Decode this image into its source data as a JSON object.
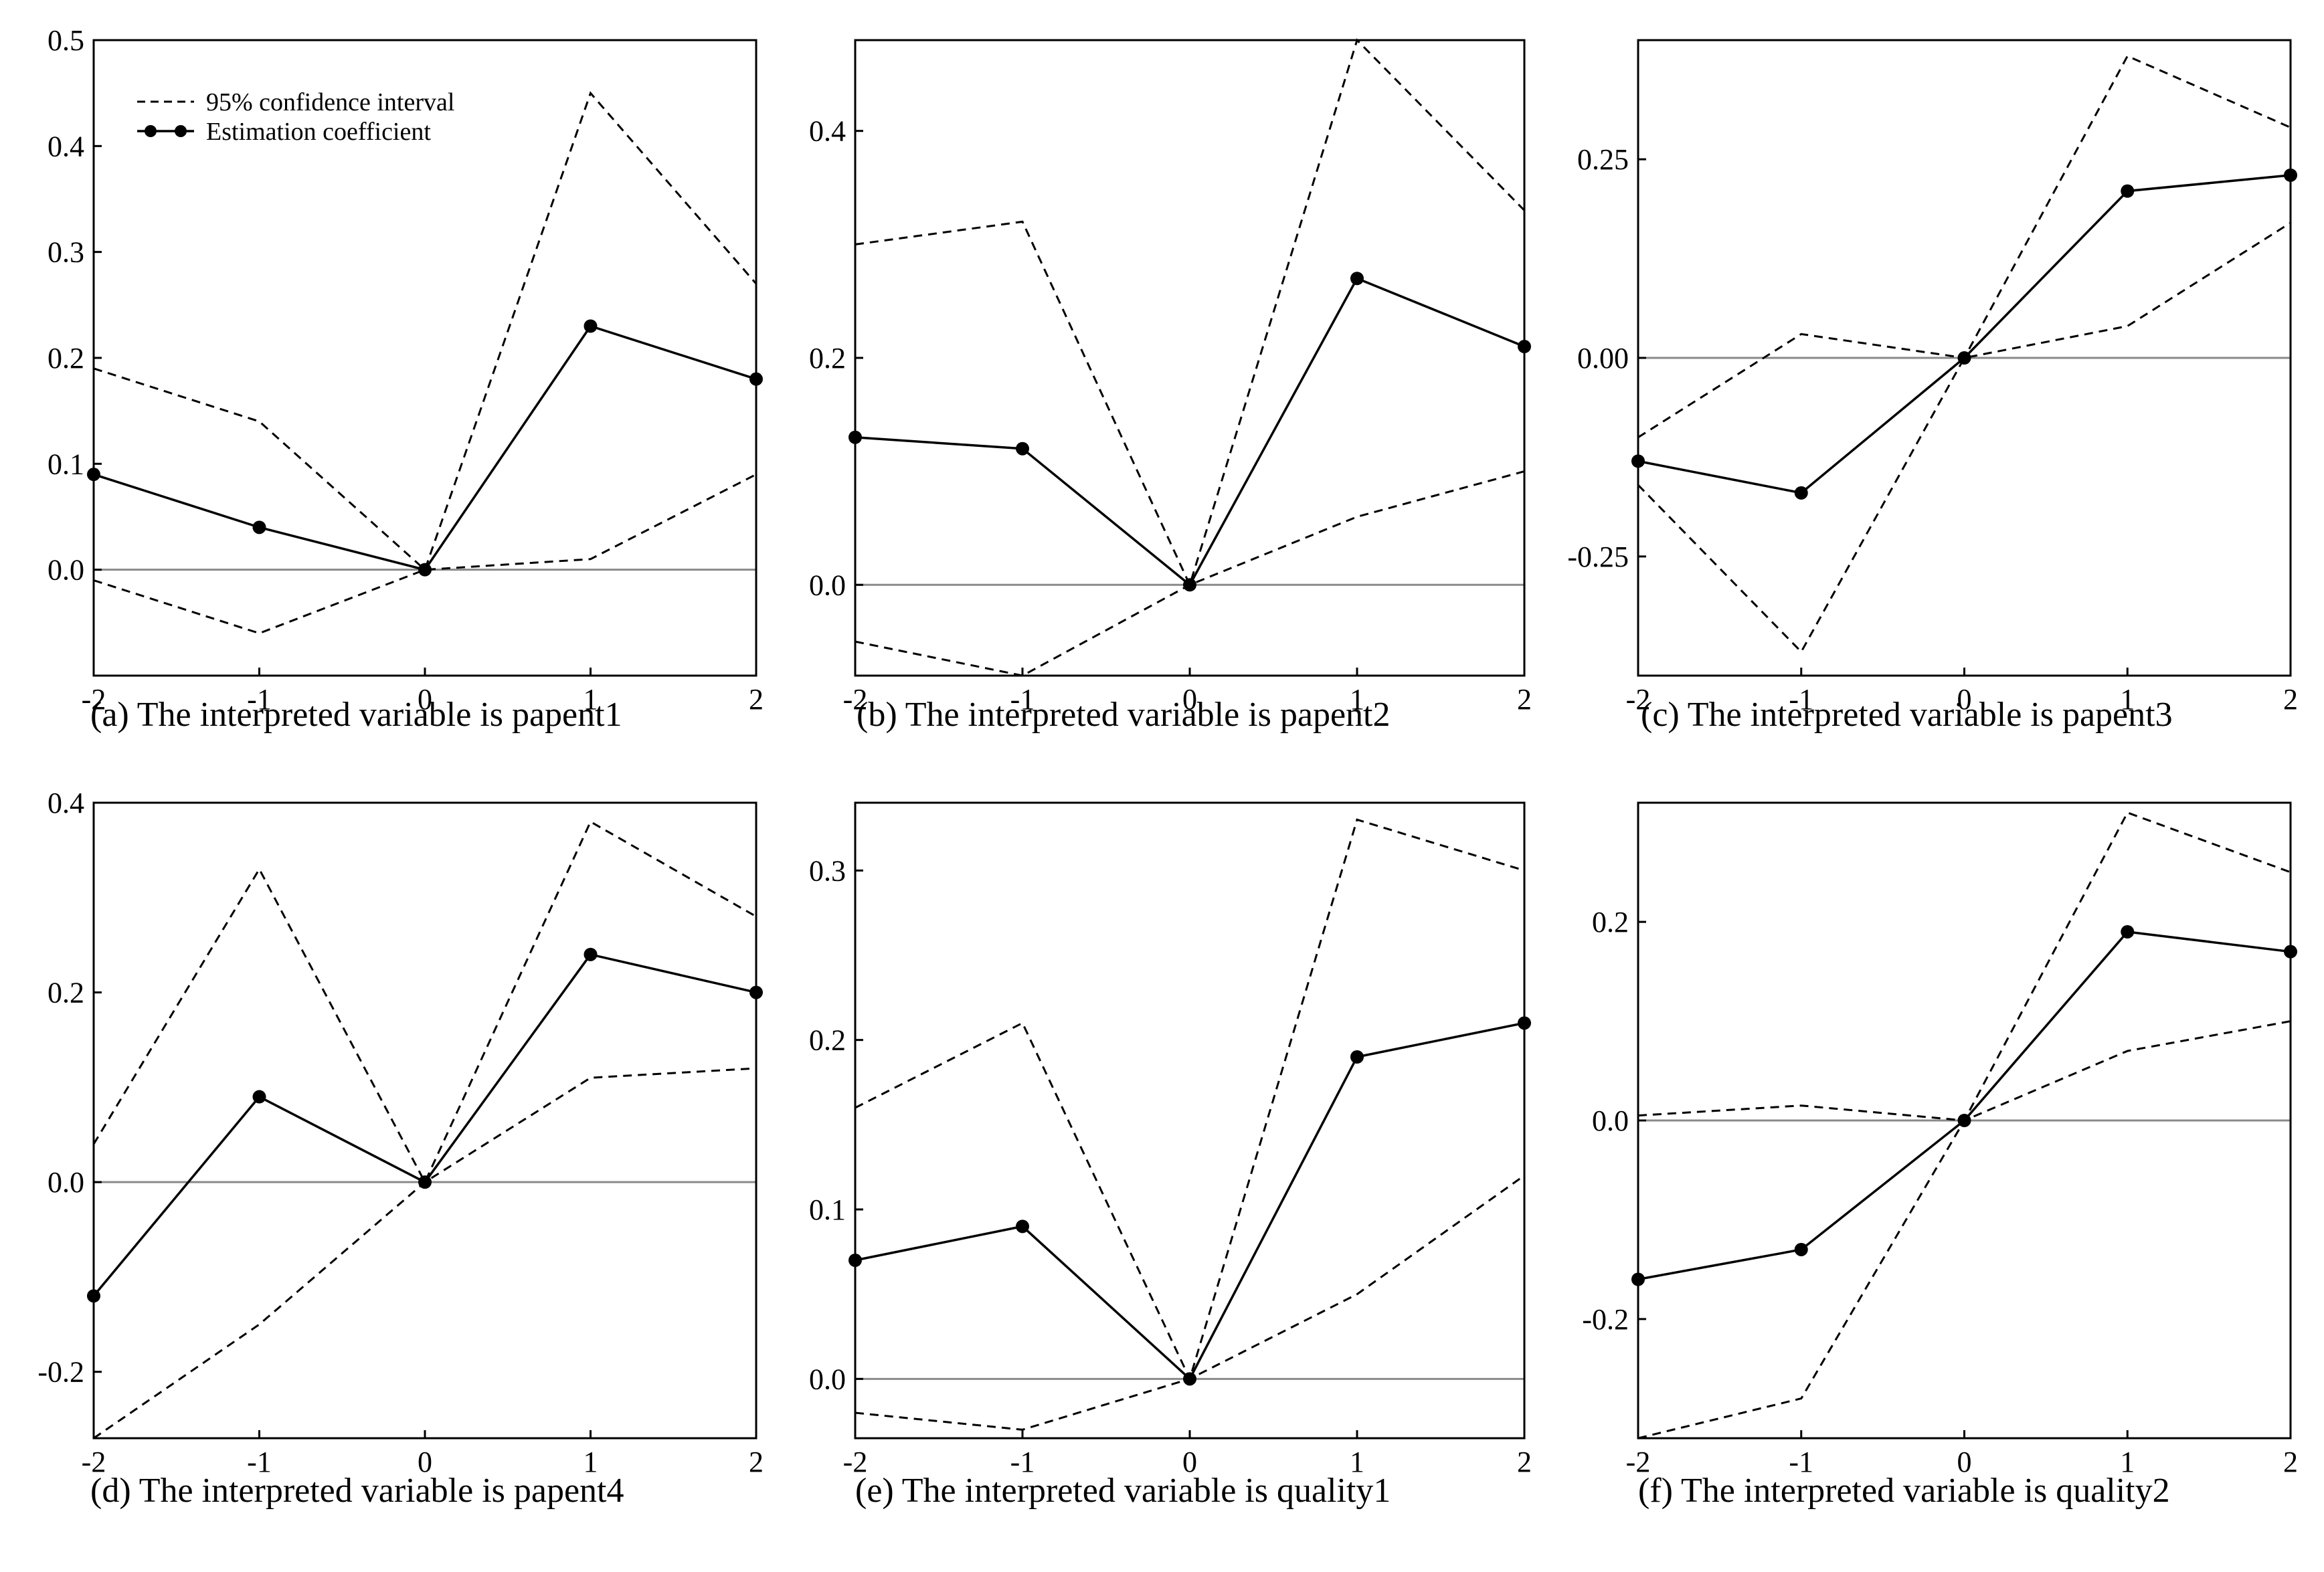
{
  "legend": {
    "ci_label": "95% confidence interval",
    "estimate_label": "Estimation coefficient"
  },
  "chart_data": [
    {
      "type": "line",
      "caption": "(a) The interpreted variable is papent1",
      "x": [
        -2,
        -1,
        0,
        1,
        2
      ],
      "xticks": [
        "-2",
        "-1",
        "0",
        "1",
        "2"
      ],
      "ylim": [
        -0.1,
        0.5
      ],
      "yticks": [
        0.0,
        0.1,
        0.2,
        0.3,
        0.4,
        0.5
      ],
      "ytick_labels": [
        "0.0",
        "0.1",
        "0.2",
        "0.3",
        "0.4",
        "0.5"
      ],
      "series": [
        {
          "name": "Estimation coefficient",
          "values": [
            0.09,
            0.04,
            0.0,
            0.23,
            0.18
          ]
        },
        {
          "name": "95% confidence interval",
          "role": "upper",
          "values": [
            0.19,
            0.14,
            0.0,
            0.45,
            0.27
          ]
        },
        {
          "name": "95% confidence interval",
          "role": "lower",
          "values": [
            -0.01,
            -0.06,
            0.0,
            0.01,
            0.09
          ]
        }
      ],
      "legend_position": "top-left",
      "zero_line": true
    },
    {
      "type": "line",
      "caption": "(b) The interpreted variable is papent2",
      "x": [
        -2,
        -1,
        0,
        1,
        2
      ],
      "xticks": [
        "-2",
        "-1",
        "0",
        "1",
        "2"
      ],
      "ylim": [
        -0.08,
        0.48
      ],
      "yticks": [
        0.0,
        0.2,
        0.4
      ],
      "ytick_labels": [
        "0.0",
        "0.2",
        "0.4"
      ],
      "series": [
        {
          "name": "Estimation coefficient",
          "values": [
            0.13,
            0.12,
            0.0,
            0.27,
            0.21
          ]
        },
        {
          "name": "95% confidence interval",
          "role": "upper",
          "values": [
            0.3,
            0.32,
            0.0,
            0.48,
            0.33
          ]
        },
        {
          "name": "95% confidence interval",
          "role": "lower",
          "values": [
            -0.05,
            -0.08,
            0.0,
            0.06,
            0.1
          ]
        }
      ],
      "zero_line": true
    },
    {
      "type": "line",
      "caption": "(c) The interpreted variable is papent3",
      "x": [
        -2,
        -1,
        0,
        1,
        2
      ],
      "xticks": [
        "-2",
        "-1",
        "0",
        "1",
        "2"
      ],
      "ylim": [
        -0.4,
        0.4
      ],
      "yticks": [
        -0.25,
        0.0,
        0.25
      ],
      "ytick_labels": [
        "-0.25",
        "0.00",
        "0.25"
      ],
      "series": [
        {
          "name": "Estimation coefficient",
          "values": [
            -0.13,
            -0.17,
            0.0,
            0.21,
            0.23
          ]
        },
        {
          "name": "95% confidence interval",
          "role": "upper",
          "values": [
            -0.1,
            0.03,
            0.0,
            0.38,
            0.29
          ]
        },
        {
          "name": "95% confidence interval",
          "role": "lower",
          "values": [
            -0.16,
            -0.37,
            0.0,
            0.04,
            0.17
          ]
        }
      ],
      "zero_line": true
    },
    {
      "type": "line",
      "caption": "(d) The interpreted variable is papent4",
      "x": [
        -2,
        -1,
        0,
        1,
        2
      ],
      "xticks": [
        "-2",
        "-1",
        "0",
        "1",
        "2"
      ],
      "ylim": [
        -0.27,
        0.4
      ],
      "yticks": [
        -0.2,
        0.0,
        0.2,
        0.4
      ],
      "ytick_labels": [
        "-0.2",
        "0.0",
        "0.2",
        "0.4"
      ],
      "series": [
        {
          "name": "Estimation coefficient",
          "values": [
            -0.12,
            0.09,
            0.0,
            0.24,
            0.2
          ]
        },
        {
          "name": "95% confidence interval",
          "role": "upper",
          "values": [
            0.04,
            0.33,
            0.0,
            0.38,
            0.28
          ]
        },
        {
          "name": "95% confidence interval",
          "role": "lower",
          "values": [
            -0.27,
            -0.15,
            0.0,
            0.11,
            0.12
          ]
        }
      ],
      "zero_line": true
    },
    {
      "type": "line",
      "caption": "(e) The interpreted variable is quality1",
      "x": [
        -2,
        -1,
        0,
        1,
        2
      ],
      "xticks": [
        "-2",
        "-1",
        "0",
        "1",
        "2"
      ],
      "ylim": [
        -0.035,
        0.34
      ],
      "yticks": [
        0.0,
        0.1,
        0.2,
        0.3
      ],
      "ytick_labels": [
        "0.0",
        "0.1",
        "0.2",
        "0.3"
      ],
      "series": [
        {
          "name": "Estimation coefficient",
          "values": [
            0.07,
            0.09,
            0.0,
            0.19,
            0.21
          ]
        },
        {
          "name": "95% confidence interval",
          "role": "upper",
          "values": [
            0.16,
            0.21,
            0.0,
            0.33,
            0.3
          ]
        },
        {
          "name": "95% confidence interval",
          "role": "lower",
          "values": [
            -0.02,
            -0.03,
            0.0,
            0.05,
            0.12
          ]
        }
      ],
      "zero_line": true
    },
    {
      "type": "line",
      "caption": "(f) The interpreted variable is quality2",
      "x": [
        -2,
        -1,
        0,
        1,
        2
      ],
      "xticks": [
        "-2",
        "-1",
        "0",
        "1",
        "2"
      ],
      "ylim": [
        -0.32,
        0.32
      ],
      "yticks": [
        -0.2,
        0.0,
        0.2
      ],
      "ytick_labels": [
        "-0.2",
        "0.0",
        "0.2"
      ],
      "series": [
        {
          "name": "Estimation coefficient",
          "values": [
            -0.16,
            -0.13,
            0.0,
            0.19,
            0.17
          ]
        },
        {
          "name": "95% confidence interval",
          "role": "upper",
          "values": [
            0.005,
            0.015,
            0.0,
            0.31,
            0.25
          ]
        },
        {
          "name": "95% confidence interval",
          "role": "lower",
          "values": [
            -0.32,
            -0.28,
            0.0,
            0.07,
            0.1
          ]
        }
      ],
      "zero_line": true
    }
  ]
}
